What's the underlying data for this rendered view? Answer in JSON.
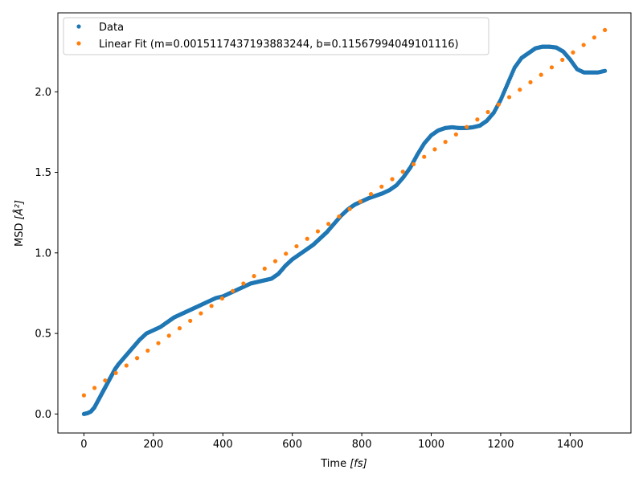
{
  "chart_data": {
    "type": "scatter",
    "title": "",
    "xlabel_main": "Time ",
    "xlabel_unit": "[fs]",
    "ylabel_main": "MSD ",
    "ylabel_unit": "[Å²]",
    "xlim": [
      -75,
      1575
    ],
    "ylim": [
      -0.118,
      2.49
    ],
    "xticks": [
      0,
      200,
      400,
      600,
      800,
      1000,
      1200,
      1400
    ],
    "xtick_labels": [
      "0",
      "200",
      "400",
      "600",
      "800",
      "1000",
      "1200",
      "1400"
    ],
    "yticks": [
      0.0,
      0.5,
      1.0,
      1.5,
      2.0
    ],
    "ytick_labels": [
      "0.0",
      "0.5",
      "1.0",
      "1.5",
      "2.0"
    ],
    "legend_position": "top-left",
    "series": [
      {
        "name": "Data",
        "color": "#1f77b4",
        "x": [
          0,
          10,
          20,
          30,
          40,
          50,
          60,
          70,
          80,
          90,
          100,
          120,
          140,
          160,
          180,
          200,
          220,
          240,
          260,
          280,
          300,
          320,
          340,
          360,
          380,
          400,
          420,
          440,
          460,
          480,
          500,
          520,
          540,
          560,
          580,
          600,
          620,
          640,
          660,
          680,
          700,
          720,
          740,
          760,
          780,
          800,
          820,
          840,
          860,
          880,
          900,
          920,
          940,
          960,
          980,
          1000,
          1020,
          1040,
          1060,
          1080,
          1100,
          1120,
          1140,
          1160,
          1180,
          1200,
          1220,
          1240,
          1260,
          1280,
          1300,
          1320,
          1340,
          1360,
          1380,
          1400,
          1420,
          1440,
          1460,
          1480,
          1500
        ],
        "y": [
          0.0,
          0.005,
          0.015,
          0.04,
          0.08,
          0.12,
          0.16,
          0.2,
          0.24,
          0.28,
          0.31,
          0.36,
          0.41,
          0.46,
          0.5,
          0.52,
          0.54,
          0.57,
          0.6,
          0.62,
          0.64,
          0.66,
          0.68,
          0.7,
          0.72,
          0.73,
          0.75,
          0.77,
          0.79,
          0.81,
          0.82,
          0.83,
          0.84,
          0.87,
          0.92,
          0.96,
          0.99,
          1.02,
          1.05,
          1.09,
          1.13,
          1.18,
          1.23,
          1.27,
          1.3,
          1.32,
          1.34,
          1.355,
          1.37,
          1.39,
          1.42,
          1.47,
          1.53,
          1.61,
          1.68,
          1.73,
          1.76,
          1.775,
          1.78,
          1.775,
          1.775,
          1.78,
          1.79,
          1.82,
          1.87,
          1.95,
          2.05,
          2.15,
          2.21,
          2.24,
          2.27,
          2.28,
          2.28,
          2.275,
          2.25,
          2.2,
          2.14,
          2.12,
          2.12,
          2.12,
          2.13
        ]
      },
      {
        "name": "Linear Fit (m=0.0015117437193883244, b=0.11567994049101116)",
        "color": "#ff7f0e",
        "x": [
          0,
          30.6,
          61.2,
          91.8,
          122.4,
          153.1,
          183.7,
          214.3,
          244.9,
          275.5,
          306.1,
          336.7,
          367.3,
          398.0,
          428.6,
          459.2,
          489.8,
          520.4,
          551.0,
          581.6,
          612.2,
          642.9,
          673.5,
          704.1,
          734.7,
          765.3,
          795.9,
          826.5,
          857.1,
          887.8,
          918.4,
          949.0,
          979.6,
          1010.2,
          1040.8,
          1071.4,
          1102.0,
          1132.7,
          1163.3,
          1193.9,
          1224.5,
          1255.1,
          1285.7,
          1316.3,
          1346.9,
          1377.6,
          1408.2,
          1438.8,
          1469.4,
          1500
        ],
        "y": [
          0.1157,
          0.1619,
          0.2082,
          0.2545,
          0.3007,
          0.3471,
          0.3934,
          0.4396,
          0.4859,
          0.5322,
          0.5784,
          0.6247,
          0.6709,
          0.7173,
          0.7636,
          0.8099,
          0.8561,
          0.9024,
          0.9486,
          0.9949,
          1.0411,
          1.0875,
          1.1338,
          1.1801,
          1.2263,
          1.2726,
          1.3188,
          1.3651,
          1.4114,
          1.4578,
          1.504,
          1.5503,
          1.5965,
          1.6428,
          1.6891,
          1.7353,
          1.7816,
          1.828,
          1.8742,
          1.9205,
          1.9668,
          2.013,
          2.0593,
          2.1055,
          2.1518,
          2.1982,
          2.2444,
          2.2907,
          2.337,
          2.3833
        ]
      }
    ]
  }
}
